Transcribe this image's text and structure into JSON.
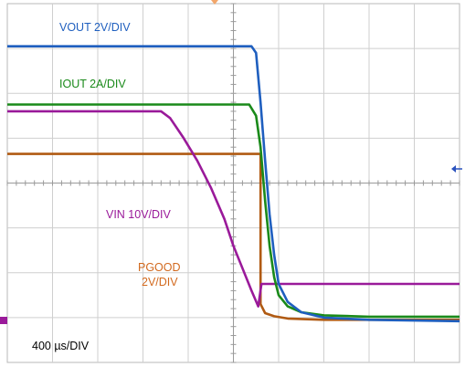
{
  "chart_data": {
    "type": "line",
    "grid": true,
    "xlim": [
      0,
      10
    ],
    "ylim": [
      0,
      8
    ],
    "annotations": {
      "vout": "VOUT 2V/DIV",
      "iout": "IOUT 2A/DIV",
      "vin": "VIN 10V/DIV",
      "pgood_line1": "PGOOD",
      "pgood_line2": "2V/DIV",
      "timebase_pre": "400 ",
      "timebase_mu": "µ",
      "timebase_post": "s/DIV"
    },
    "series": [
      {
        "key": "vout",
        "color": "#1f5fbf",
        "x": [
          0,
          5.4,
          5.5,
          5.6,
          5.7,
          5.8,
          5.9,
          6.0,
          6.2,
          6.5,
          7.0,
          8.0,
          10.0
        ],
        "y": [
          7.05,
          7.05,
          6.9,
          5.8,
          4.5,
          3.3,
          2.4,
          1.75,
          1.35,
          1.12,
          1.0,
          0.95,
          0.92
        ]
      },
      {
        "key": "iout",
        "color": "#1a8a1a",
        "x": [
          0,
          5.35,
          5.5,
          5.6,
          5.7,
          5.8,
          5.9,
          6.0,
          6.2,
          6.5,
          7.0,
          8.0,
          10.0
        ],
        "y": [
          5.75,
          5.75,
          5.5,
          4.8,
          3.6,
          2.6,
          1.9,
          1.5,
          1.25,
          1.12,
          1.05,
          1.02,
          1.02
        ]
      },
      {
        "key": "vin",
        "color": "#9a1a9a",
        "x": [
          0,
          3.4,
          3.6,
          3.9,
          4.2,
          4.5,
          4.8,
          5.0,
          5.2,
          5.4,
          5.55,
          5.62,
          6.0,
          10.0
        ],
        "y": [
          5.6,
          5.6,
          5.45,
          5.0,
          4.5,
          3.9,
          3.2,
          2.6,
          2.1,
          1.6,
          1.25,
          1.75,
          1.75,
          1.75
        ]
      },
      {
        "key": "pgood",
        "color": "#b05a12",
        "x": [
          0,
          5.6,
          5.6,
          5.7,
          5.9,
          6.2,
          7.0,
          10.0
        ],
        "y": [
          4.65,
          4.65,
          1.3,
          1.1,
          1.03,
          0.98,
          0.95,
          0.95
        ]
      }
    ]
  },
  "markers": {
    "trigger_color": "#f2a66a",
    "ref_color": "#2a52be",
    "ch_color": "#9a1a9a"
  }
}
